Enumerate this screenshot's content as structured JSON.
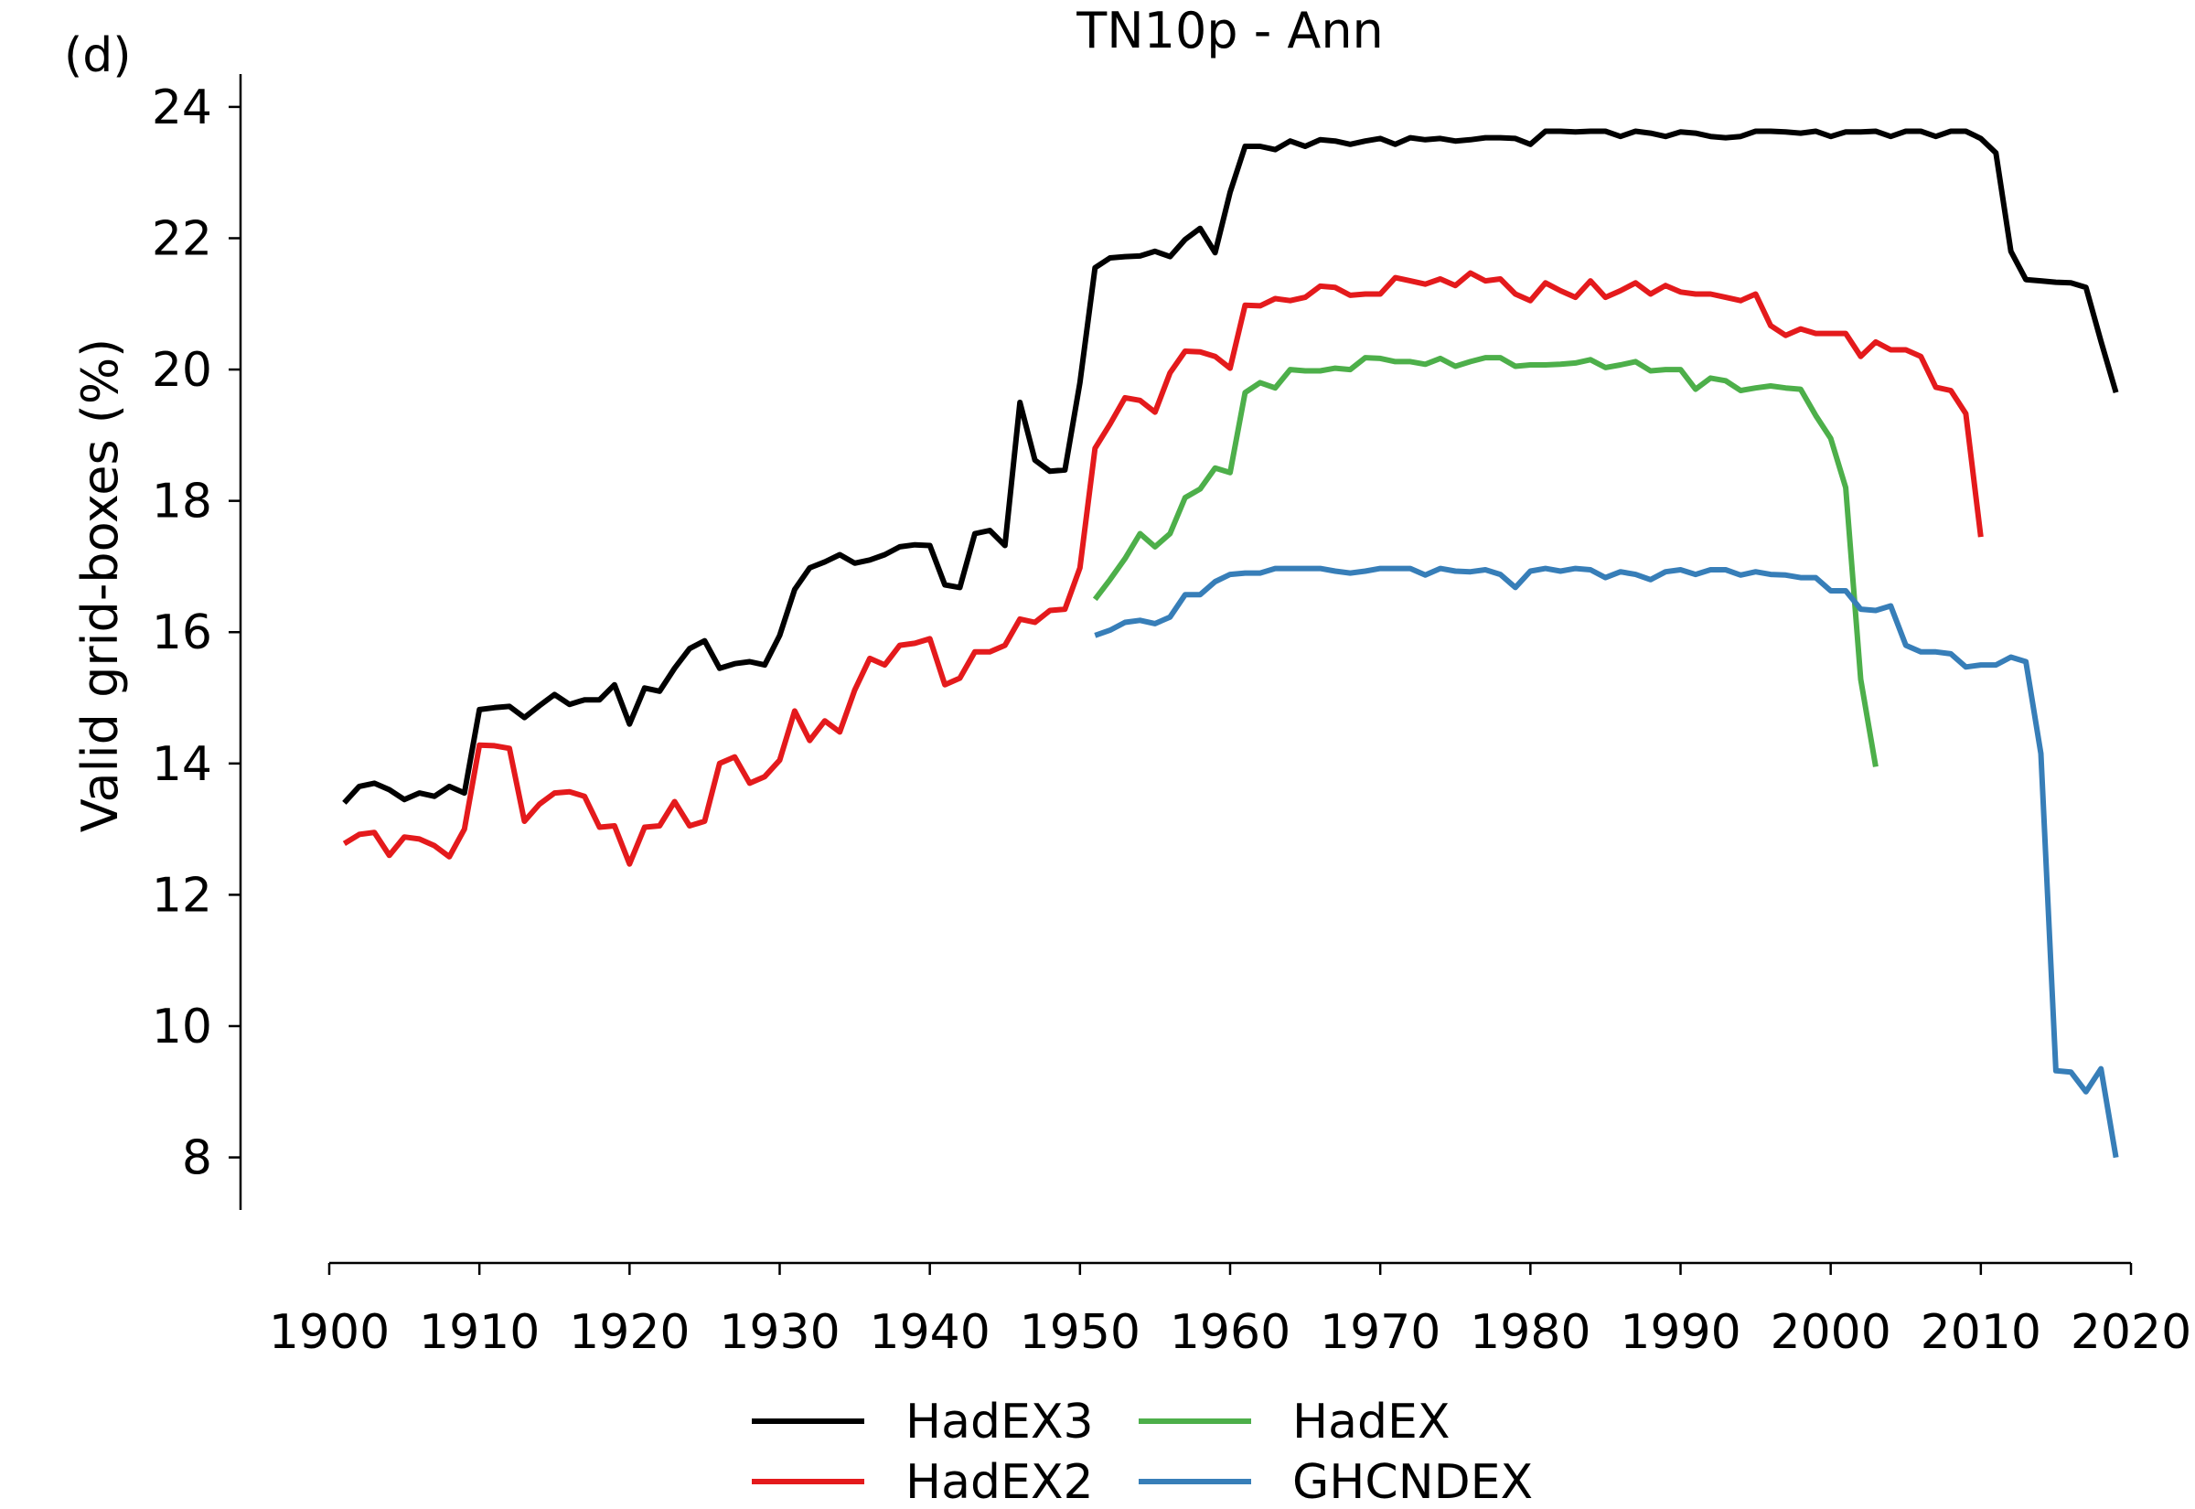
{
  "chart_data": {
    "type": "line",
    "panel_label": "(d)",
    "title": "TN10p - Ann",
    "xlabel": "",
    "ylabel": "Valid grid-boxes (%)",
    "xlim": [
      1900,
      2020
    ],
    "ylim": [
      7.2,
      24.5
    ],
    "x_ticks": [
      1900,
      1910,
      1920,
      1930,
      1940,
      1950,
      1960,
      1970,
      1980,
      1990,
      2000,
      2010,
      2020
    ],
    "y_ticks": [
      8,
      10,
      12,
      14,
      16,
      18,
      20,
      22,
      24
    ],
    "grid": false,
    "legend_position": "bottom-center",
    "series": [
      {
        "name": "HadEX3",
        "color": "#000000",
        "x_start": 1901,
        "values": [
          13.4,
          13.65,
          13.7,
          13.6,
          13.45,
          13.55,
          13.5,
          13.65,
          13.55,
          14.82,
          14.85,
          14.87,
          14.7,
          14.88,
          15.05,
          14.9,
          14.97,
          14.97,
          15.2,
          14.6,
          15.15,
          15.1,
          15.45,
          15.75,
          15.87,
          15.45,
          15.52,
          15.55,
          15.5,
          15.95,
          16.65,
          16.98,
          17.07,
          17.18,
          17.05,
          17.1,
          17.18,
          17.3,
          17.33,
          17.32,
          16.72,
          16.68,
          17.5,
          17.55,
          17.32,
          19.5,
          18.62,
          18.45,
          18.47,
          19.8,
          21.55,
          21.7,
          21.72,
          21.73,
          21.8,
          21.72,
          21.98,
          22.15,
          21.78,
          22.7,
          23.4,
          23.4,
          23.35,
          23.48,
          23.4,
          23.5,
          23.48,
          23.43,
          23.48,
          23.52,
          23.43,
          23.53,
          23.5,
          23.52,
          23.48,
          23.5,
          23.53,
          23.53,
          23.52,
          23.43,
          23.63,
          23.63,
          23.62,
          23.63,
          23.63,
          23.55,
          23.63,
          23.6,
          23.55,
          23.62,
          23.6,
          23.55,
          23.53,
          23.55,
          23.63,
          23.63,
          23.62,
          23.6,
          23.63,
          23.55,
          23.62,
          23.62,
          23.63,
          23.55,
          23.63,
          23.63,
          23.55,
          23.63,
          23.63,
          23.52,
          23.3,
          21.8,
          21.37,
          21.35,
          21.33,
          21.32,
          21.25,
          20.43,
          19.65
        ]
      },
      {
        "name": "HadEX2",
        "color": "#e41a1c",
        "x_start": 1901,
        "values": [
          12.78,
          12.92,
          12.95,
          12.6,
          12.88,
          12.85,
          12.75,
          12.58,
          13.0,
          14.28,
          14.27,
          14.23,
          13.12,
          13.38,
          13.55,
          13.57,
          13.5,
          13.03,
          13.05,
          12.47,
          13.03,
          13.05,
          13.42,
          13.05,
          13.12,
          14.0,
          14.1,
          13.7,
          13.8,
          14.05,
          14.8,
          14.35,
          14.65,
          14.48,
          15.12,
          15.6,
          15.5,
          15.8,
          15.83,
          15.9,
          15.2,
          15.3,
          15.7,
          15.7,
          15.8,
          16.2,
          16.15,
          16.33,
          16.35,
          16.98,
          18.8,
          19.17,
          19.57,
          19.53,
          19.35,
          19.95,
          20.28,
          20.27,
          20.2,
          20.02,
          20.98,
          20.97,
          21.08,
          21.05,
          21.1,
          21.27,
          21.25,
          21.13,
          21.15,
          21.15,
          21.4,
          21.35,
          21.3,
          21.38,
          21.28,
          21.47,
          21.35,
          21.38,
          21.15,
          21.05,
          21.32,
          21.2,
          21.1,
          21.35,
          21.1,
          21.2,
          21.32,
          21.15,
          21.28,
          21.18,
          21.15,
          21.15,
          21.1,
          21.05,
          21.15,
          20.67,
          20.52,
          20.62,
          20.55,
          20.55,
          20.55,
          20.2,
          20.42,
          20.3,
          20.3,
          20.2,
          19.73,
          19.68,
          19.33,
          17.45
        ]
      },
      {
        "name": "HadEX",
        "color": "#4daf4a",
        "x_start": 1951,
        "values": [
          16.5,
          16.8,
          17.12,
          17.5,
          17.3,
          17.5,
          18.05,
          18.18,
          18.5,
          18.43,
          19.65,
          19.8,
          19.72,
          20.0,
          19.98,
          19.98,
          20.02,
          20.0,
          20.18,
          20.17,
          20.12,
          20.12,
          20.08,
          20.17,
          20.05,
          20.12,
          20.18,
          20.18,
          20.05,
          20.07,
          20.07,
          20.08,
          20.1,
          20.15,
          20.03,
          20.07,
          20.12,
          19.98,
          20.0,
          20.0,
          19.7,
          19.87,
          19.83,
          19.68,
          19.72,
          19.75,
          19.72,
          19.7,
          19.3,
          18.95,
          18.2,
          15.28,
          13.95
        ]
      },
      {
        "name": "GHCNDEX",
        "color": "#377eb8",
        "x_start": 1951,
        "values": [
          15.95,
          16.03,
          16.15,
          16.18,
          16.13,
          16.23,
          16.57,
          16.57,
          16.77,
          16.88,
          16.9,
          16.9,
          16.97,
          16.97,
          16.97,
          16.97,
          16.93,
          16.9,
          16.93,
          16.97,
          16.97,
          16.97,
          16.87,
          16.97,
          16.93,
          16.92,
          16.95,
          16.88,
          16.68,
          16.93,
          16.97,
          16.93,
          16.97,
          16.95,
          16.83,
          16.92,
          16.88,
          16.8,
          16.92,
          16.95,
          16.88,
          16.95,
          16.95,
          16.87,
          16.92,
          16.88,
          16.87,
          16.83,
          16.83,
          16.63,
          16.63,
          16.35,
          16.33,
          16.4,
          15.8,
          15.7,
          15.7,
          15.67,
          15.47,
          15.5,
          15.5,
          15.62,
          15.55,
          14.15,
          9.32,
          9.3,
          9.0,
          9.35,
          8.0
        ]
      }
    ]
  }
}
